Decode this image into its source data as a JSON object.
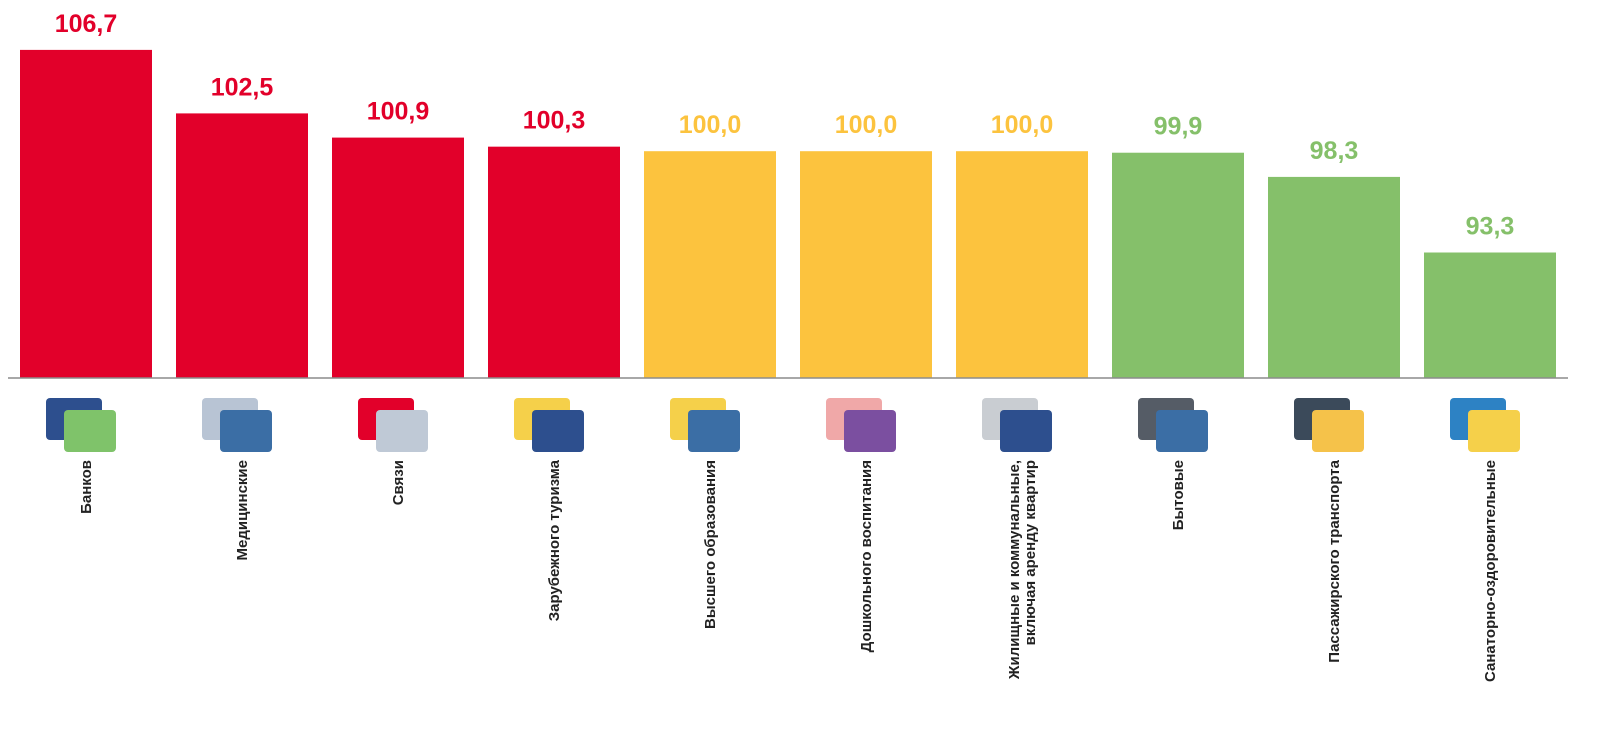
{
  "chart_data": {
    "type": "bar",
    "categories": [
      "Банков",
      "Медицинские",
      "Связи",
      "Зарубежного туризма",
      "Высшего образования",
      "Дошкольного воспитания",
      [
        "Жилищные и коммунальные,",
        "включая аренду квартир"
      ],
      "Бытовые",
      "Пассажирского транспорта",
      "Санаторно-оздоровительные"
    ],
    "values": [
      106.7,
      102.5,
      100.9,
      100.3,
      100.0,
      100.0,
      100.0,
      99.9,
      98.3,
      93.3
    ],
    "value_labels": [
      "106,7",
      "102,5",
      "100,9",
      "100,3",
      "100,0",
      "100,0",
      "100,0",
      "99,9",
      "98,3",
      "93,3"
    ],
    "colors": [
      "#e2002a",
      "#e2002a",
      "#e2002a",
      "#e2002a",
      "#fcc33e",
      "#fcc33e",
      "#fcc33e",
      "#85c06a",
      "#85c06a",
      "#85c06a"
    ],
    "ylim": [
      85,
      110
    ]
  }
}
